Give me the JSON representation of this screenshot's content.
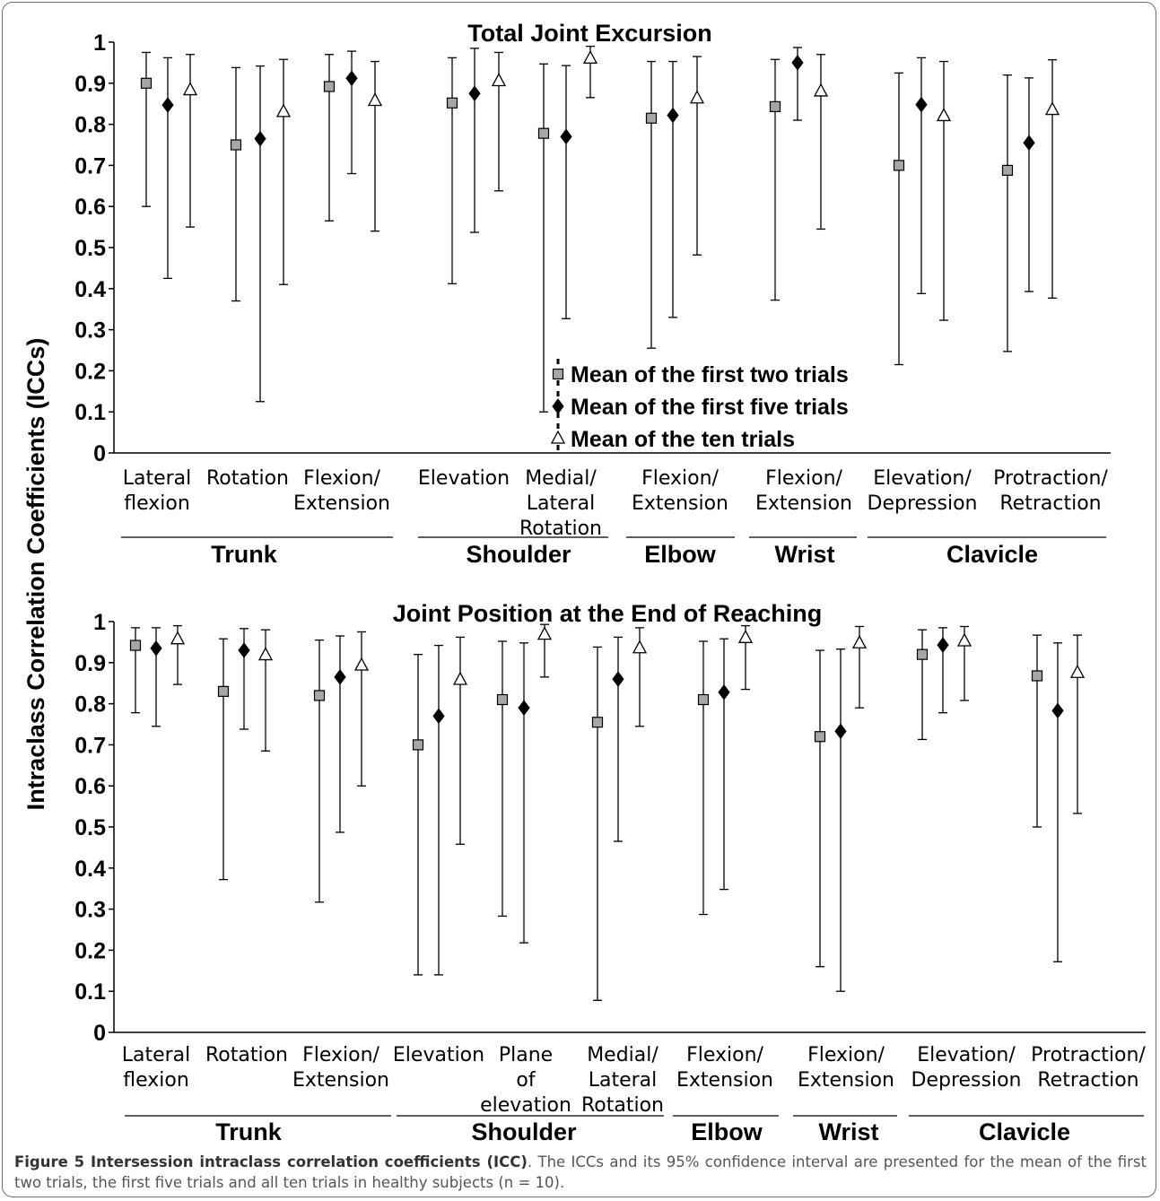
{
  "y_axis_label": "Intraclass Correlation Coefficients (ICCs)",
  "caption": {
    "label": "Figure 5 Intersession intraclass correlation coefficients (ICC)",
    "text": ". The ICCs and its 95% confidence interval are presented for the mean of the first two trials, the first five trials and all ten trials in healthy subjects (n = 10)."
  },
  "legend": [
    {
      "name": "Mean of the first two trials",
      "marker": "square"
    },
    {
      "name": "Mean of the first five trials",
      "marker": "diamond"
    },
    {
      "name": "Mean of the ten trials",
      "marker": "triangle"
    }
  ],
  "colors": {
    "square_fill": "#a6a6a6",
    "diamond_fill": "#000000",
    "triangle_fill": "#ffffff",
    "line": "#000000"
  },
  "chart_data": [
    {
      "type": "scatter",
      "title": "Total Joint Excursion",
      "ylim": [
        0,
        1
      ],
      "yticks": [
        "0",
        "0.1",
        "0.2",
        "0.3",
        "0.4",
        "0.5",
        "0.6",
        "0.7",
        "0.8",
        "0.9",
        "1"
      ],
      "grid": false,
      "legend_position": "bottom-center",
      "series_names": [
        "Mean of the first two trials",
        "Mean of the first five trials",
        "Mean of the ten trials"
      ],
      "categories": [
        {
          "label": [
            "Lateral",
            "flexion"
          ],
          "group": "Trunk",
          "points": [
            {
              "v": 0.9,
              "lo": 0.6,
              "hi": 0.975
            },
            {
              "v": 0.847,
              "lo": 0.425,
              "hi": 0.962
            },
            {
              "v": 0.883,
              "lo": 0.55,
              "hi": 0.97
            }
          ]
        },
        {
          "label": [
            "Rotation"
          ],
          "group": "Trunk",
          "points": [
            {
              "v": 0.75,
              "lo": 0.37,
              "hi": 0.938
            },
            {
              "v": 0.765,
              "lo": 0.125,
              "hi": 0.942
            },
            {
              "v": 0.83,
              "lo": 0.41,
              "hi": 0.958
            }
          ]
        },
        {
          "label": [
            "Flexion/",
            "Extension"
          ],
          "group": "Trunk",
          "points": [
            {
              "v": 0.892,
              "lo": 0.565,
              "hi": 0.97
            },
            {
              "v": 0.912,
              "lo": 0.68,
              "hi": 0.978
            },
            {
              "v": 0.857,
              "lo": 0.54,
              "hi": 0.953
            }
          ]
        },
        {
          "label": [
            "Elevation"
          ],
          "group": "Shoulder",
          "points": [
            {
              "v": 0.852,
              "lo": 0.412,
              "hi": 0.962
            },
            {
              "v": 0.875,
              "lo": 0.537,
              "hi": 0.985
            },
            {
              "v": 0.905,
              "lo": 0.638,
              "hi": 0.975
            }
          ]
        },
        {
          "label": [
            "Medial/",
            "Lateral",
            "Rotation"
          ],
          "group": "Shoulder",
          "points": [
            {
              "v": 0.778,
              "lo": 0.1,
              "hi": 0.947
            },
            {
              "v": 0.77,
              "lo": 0.327,
              "hi": 0.943
            },
            {
              "v": 0.96,
              "lo": 0.865,
              "hi": 0.99
            }
          ]
        },
        {
          "label": [
            "Flexion/",
            "Extension"
          ],
          "group": "Elbow",
          "points": [
            {
              "v": 0.815,
              "lo": 0.255,
              "hi": 0.953
            },
            {
              "v": 0.822,
              "lo": 0.33,
              "hi": 0.953
            },
            {
              "v": 0.863,
              "lo": 0.482,
              "hi": 0.965
            }
          ]
        },
        {
          "label": [
            "Flexion/",
            "Extension"
          ],
          "group": "Wrist",
          "points": [
            {
              "v": 0.843,
              "lo": 0.372,
              "hi": 0.958
            },
            {
              "v": 0.95,
              "lo": 0.81,
              "hi": 0.987
            },
            {
              "v": 0.88,
              "lo": 0.545,
              "hi": 0.97
            }
          ]
        },
        {
          "label": [
            "Elevation/",
            "Depression"
          ],
          "group": "Clavicle",
          "points": [
            {
              "v": 0.7,
              "lo": 0.215,
              "hi": 0.925
            },
            {
              "v": 0.848,
              "lo": 0.388,
              "hi": 0.962
            },
            {
              "v": 0.82,
              "lo": 0.323,
              "hi": 0.953
            }
          ]
        },
        {
          "label": [
            "Protraction/",
            "Retraction"
          ],
          "group": "Clavicle",
          "points": [
            {
              "v": 0.688,
              "lo": 0.247,
              "hi": 0.92
            },
            {
              "v": 0.755,
              "lo": 0.393,
              "hi": 0.913
            },
            {
              "v": 0.835,
              "lo": 0.377,
              "hi": 0.957
            }
          ]
        }
      ],
      "groups": [
        "Trunk",
        "Shoulder",
        "Elbow",
        "Wrist",
        "Clavicle"
      ]
    },
    {
      "type": "scatter",
      "title": "Joint Position at the End of Reaching",
      "ylim": [
        0,
        1
      ],
      "yticks": [
        "0",
        "0.1",
        "0.2",
        "0.3",
        "0.4",
        "0.5",
        "0.6",
        "0.7",
        "0.8",
        "0.9",
        "1"
      ],
      "grid": false,
      "series_names": [
        "Mean of the first two trials",
        "Mean of the first five trials",
        "Mean of the ten trials"
      ],
      "categories": [
        {
          "label": [
            "Lateral",
            "flexion"
          ],
          "group": "Trunk",
          "points": [
            {
              "v": 0.942,
              "lo": 0.778,
              "hi": 0.985
            },
            {
              "v": 0.935,
              "lo": 0.745,
              "hi": 0.985
            },
            {
              "v": 0.957,
              "lo": 0.847,
              "hi": 0.99
            }
          ]
        },
        {
          "label": [
            "Rotation"
          ],
          "group": "Trunk",
          "points": [
            {
              "v": 0.83,
              "lo": 0.372,
              "hi": 0.958
            },
            {
              "v": 0.93,
              "lo": 0.738,
              "hi": 0.983
            },
            {
              "v": 0.918,
              "lo": 0.685,
              "hi": 0.98
            }
          ]
        },
        {
          "label": [
            "Flexion/",
            "Extension"
          ],
          "group": "Trunk",
          "points": [
            {
              "v": 0.82,
              "lo": 0.317,
              "hi": 0.955
            },
            {
              "v": 0.865,
              "lo": 0.487,
              "hi": 0.965
            },
            {
              "v": 0.893,
              "lo": 0.6,
              "hi": 0.975
            }
          ]
        },
        {
          "label": [
            "Elevation"
          ],
          "group": "Shoulder",
          "points": [
            {
              "v": 0.7,
              "lo": 0.14,
              "hi": 0.92
            },
            {
              "v": 0.77,
              "lo": 0.14,
              "hi": 0.942
            },
            {
              "v": 0.858,
              "lo": 0.458,
              "hi": 0.962
            }
          ]
        },
        {
          "label": [
            "Plane",
            "of",
            "elevation"
          ],
          "group": "Shoulder",
          "points": [
            {
              "v": 0.81,
              "lo": 0.283,
              "hi": 0.952
            },
            {
              "v": 0.79,
              "lo": 0.218,
              "hi": 0.948
            },
            {
              "v": 0.968,
              "lo": 0.865,
              "hi": 0.993
            }
          ]
        },
        {
          "label": [
            "Medial/",
            "Lateral",
            "Rotation"
          ],
          "group": "Shoulder",
          "points": [
            {
              "v": 0.755,
              "lo": 0.078,
              "hi": 0.938
            },
            {
              "v": 0.86,
              "lo": 0.465,
              "hi": 0.962
            },
            {
              "v": 0.935,
              "lo": 0.745,
              "hi": 0.985
            }
          ]
        },
        {
          "label": [
            "Flexion/",
            "Extension"
          ],
          "group": "Elbow",
          "points": [
            {
              "v": 0.81,
              "lo": 0.287,
              "hi": 0.952
            },
            {
              "v": 0.828,
              "lo": 0.348,
              "hi": 0.958
            },
            {
              "v": 0.96,
              "lo": 0.835,
              "hi": 0.99
            }
          ]
        },
        {
          "label": [
            "Flexion/",
            "Extension"
          ],
          "group": "Wrist",
          "points": [
            {
              "v": 0.72,
              "lo": 0.16,
              "hi": 0.93
            },
            {
              "v": 0.733,
              "lo": 0.1,
              "hi": 0.933
            },
            {
              "v": 0.947,
              "lo": 0.79,
              "hi": 0.988
            }
          ]
        },
        {
          "label": [
            "Elevation/",
            "Depression"
          ],
          "group": "Clavicle",
          "points": [
            {
              "v": 0.92,
              "lo": 0.713,
              "hi": 0.98
            },
            {
              "v": 0.943,
              "lo": 0.778,
              "hi": 0.985
            },
            {
              "v": 0.952,
              "lo": 0.808,
              "hi": 0.988
            }
          ]
        },
        {
          "label": [
            "Protraction/",
            "Retraction"
          ],
          "group": "Clavicle",
          "points": [
            {
              "v": 0.868,
              "lo": 0.5,
              "hi": 0.967
            },
            {
              "v": 0.783,
              "lo": 0.172,
              "hi": 0.948
            },
            {
              "v": 0.875,
              "lo": 0.533,
              "hi": 0.967
            }
          ]
        }
      ],
      "groups": [
        "Trunk",
        "Shoulder",
        "Elbow",
        "Wrist",
        "Clavicle"
      ]
    }
  ]
}
